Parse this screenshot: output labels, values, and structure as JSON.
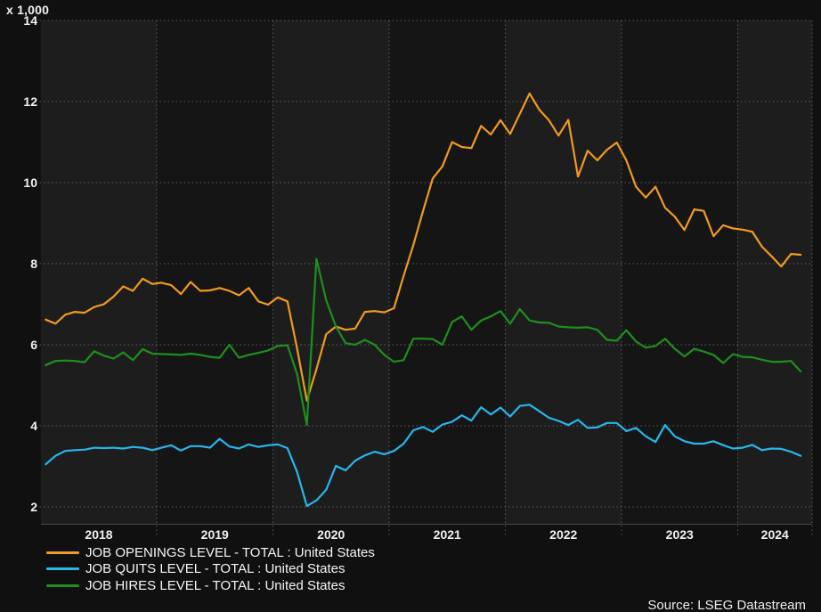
{
  "header": {
    "unit_label": "x 1,000"
  },
  "source": {
    "label": "Source: LSEG Datastream"
  },
  "colors": {
    "background": "#101010",
    "band_even_year": "#1d1d1d",
    "band_odd_year": "#151515",
    "gridline": "#7a7a7a",
    "axis_line": "#484848",
    "text": "#f0f0f0",
    "openings": "#f09a20",
    "quits": "#29b6ea",
    "hires": "#1e8f1e"
  },
  "chart_data": {
    "type": "line",
    "title": "",
    "unit_label": "x 1,000",
    "frequency": "monthly",
    "x_start": "2018-01",
    "x_end": "2024-07",
    "xlabel": "",
    "ylabel": "x 1,000",
    "ylim": [
      1.5,
      14
    ],
    "y_ticks": [
      2,
      4,
      6,
      8,
      10,
      12,
      14
    ],
    "x_tick_years": [
      "2018",
      "2019",
      "2020",
      "2021",
      "2022",
      "2023",
      "2024"
    ],
    "grid": "dotted",
    "legend_position": "bottom-left",
    "series": [
      {
        "name": "JOB OPENINGS LEVEL - TOTAL : United States",
        "key": "openings",
        "color": "#f09a20",
        "values": [
          6.62,
          6.52,
          6.74,
          6.81,
          6.79,
          6.93,
          7.0,
          7.19,
          7.44,
          7.33,
          7.63,
          7.5,
          7.53,
          7.47,
          7.25,
          7.55,
          7.33,
          7.34,
          7.4,
          7.33,
          7.22,
          7.4,
          7.07,
          6.99,
          7.17,
          7.07,
          5.9,
          4.62,
          5.4,
          6.26,
          6.45,
          6.37,
          6.4,
          6.81,
          6.83,
          6.8,
          6.9,
          7.7,
          8.46,
          9.3,
          10.1,
          10.4,
          11.0,
          10.88,
          10.85,
          11.4,
          11.19,
          11.54,
          11.2,
          11.7,
          12.2,
          11.8,
          11.54,
          11.16,
          11.55,
          10.15,
          10.79,
          10.55,
          10.81,
          10.99,
          10.55,
          9.9,
          9.63,
          9.9,
          9.38,
          9.16,
          8.83,
          9.34,
          9.3,
          8.68,
          8.95,
          8.87,
          8.84,
          8.79,
          8.42,
          8.18,
          7.93,
          8.24,
          8.22
        ]
      },
      {
        "name": "JOB QUITS LEVEL - TOTAL : United States",
        "key": "quits",
        "color": "#29b6ea",
        "values": [
          3.05,
          3.26,
          3.38,
          3.4,
          3.41,
          3.46,
          3.45,
          3.46,
          3.44,
          3.48,
          3.46,
          3.4,
          3.46,
          3.52,
          3.39,
          3.5,
          3.5,
          3.46,
          3.68,
          3.49,
          3.44,
          3.54,
          3.48,
          3.52,
          3.54,
          3.45,
          2.86,
          2.02,
          2.16,
          2.42,
          3.01,
          2.9,
          3.14,
          3.27,
          3.36,
          3.3,
          3.38,
          3.56,
          3.89,
          3.97,
          3.85,
          4.03,
          4.1,
          4.26,
          4.13,
          4.46,
          4.28,
          4.45,
          4.23,
          4.49,
          4.52,
          4.36,
          4.2,
          4.12,
          4.02,
          4.15,
          3.95,
          3.96,
          4.07,
          4.07,
          3.87,
          3.95,
          3.74,
          3.6,
          4.02,
          3.74,
          3.62,
          3.56,
          3.56,
          3.62,
          3.52,
          3.44,
          3.46,
          3.53,
          3.4,
          3.44,
          3.43,
          3.36,
          3.26
        ]
      },
      {
        "name": "JOB HIRES LEVEL - TOTAL : United States",
        "key": "hires",
        "color": "#1e8f1e",
        "values": [
          5.5,
          5.6,
          5.61,
          5.6,
          5.57,
          5.84,
          5.73,
          5.66,
          5.81,
          5.62,
          5.89,
          5.78,
          5.77,
          5.76,
          5.75,
          5.78,
          5.75,
          5.7,
          5.68,
          6.0,
          5.68,
          5.75,
          5.8,
          5.86,
          5.97,
          5.99,
          5.27,
          4.02,
          8.12,
          7.1,
          6.45,
          6.04,
          6.0,
          6.12,
          6.0,
          5.75,
          5.58,
          5.62,
          6.15,
          6.15,
          6.14,
          6.0,
          6.56,
          6.7,
          6.37,
          6.6,
          6.7,
          6.83,
          6.52,
          6.88,
          6.6,
          6.55,
          6.54,
          6.45,
          6.43,
          6.42,
          6.43,
          6.37,
          6.12,
          6.1,
          6.36,
          6.08,
          5.93,
          5.97,
          6.15,
          5.9,
          5.71,
          5.9,
          5.83,
          5.75,
          5.55,
          5.77,
          5.7,
          5.69,
          5.63,
          5.58,
          5.58,
          5.6,
          5.34
        ]
      }
    ]
  }
}
